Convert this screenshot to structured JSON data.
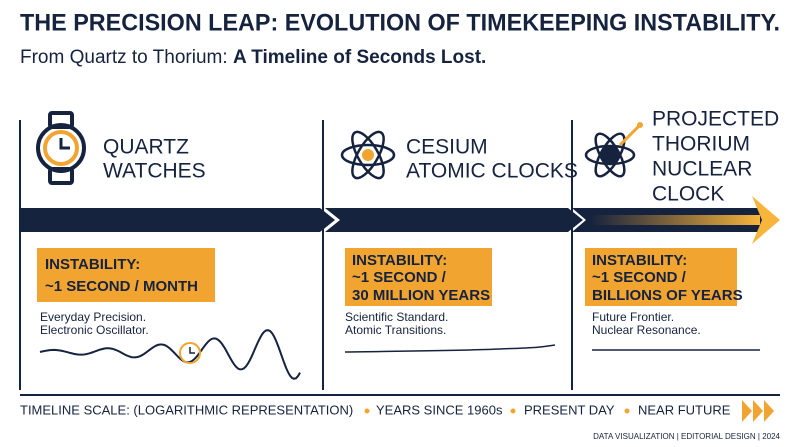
{
  "header": {
    "title": "THE PRECISION LEAP: EVOLUTION OF TIMEKEEPING INSTABILITY.",
    "subtitle_lead": "From Quartz to Thorium:",
    "subtitle_emphasis": "A Timeline of Seconds Lost."
  },
  "stages": [
    {
      "label_lines": [
        "QUARTZ",
        "WATCHES"
      ],
      "instability_label": "INSTABILITY:",
      "instability_lines": [
        "~1 SECOND / MONTH"
      ],
      "description_lines": [
        "Everyday Precision.",
        "Electronic Oscillator."
      ]
    },
    {
      "label_lines": [
        "CESIUM",
        "ATOMIC CLOCKS"
      ],
      "instability_label": "INSTABILITY:",
      "instability_lines": [
        "~1 SECOND /",
        "30 MILLION YEARS"
      ],
      "description_lines": [
        "Scientific Standard.",
        "Atomic Transitions."
      ]
    },
    {
      "label_lines": [
        "PROJECTED",
        "THORIUM",
        "NUCLEAR",
        "CLOCK"
      ],
      "instability_label": "INSTABILITY:",
      "instability_lines": [
        "~1 SECOND /",
        "BILLIONS OF YEARS"
      ],
      "description_lines": [
        "Future Frontier.",
        "Nuclear Resonance."
      ]
    }
  ],
  "footer": {
    "scale_items": [
      "TIMELINE SCALE: (LOGARITHMIC REPRESENTATION)",
      "YEARS SINCE 1960s",
      "PRESENT DAY",
      "NEAR FUTURE"
    ],
    "credit": "DATA VISUALIZATION | EDITORIAL DESIGN | 2024"
  }
}
